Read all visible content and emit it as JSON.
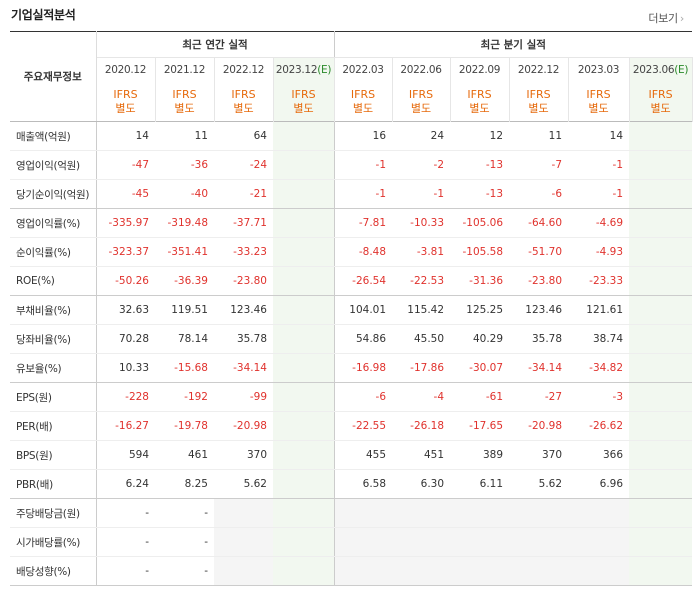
{
  "header": {
    "title": "기업실적분석",
    "more_label": "더보기",
    "more_chevron": "›"
  },
  "table": {
    "row_header": "주요재무정보",
    "annual_group": "최근 연간 실적",
    "quarter_group": "최근 분기 실적",
    "annual_periods": [
      {
        "label": "2020.12",
        "est": false
      },
      {
        "label": "2021.12",
        "est": false
      },
      {
        "label": "2022.12",
        "est": false
      },
      {
        "label": "2023.12",
        "est": true
      }
    ],
    "quarter_periods": [
      {
        "label": "2022.03",
        "est": false
      },
      {
        "label": "2022.06",
        "est": false
      },
      {
        "label": "2022.09",
        "est": false
      },
      {
        "label": "2022.12",
        "est": false
      },
      {
        "label": "2023.03",
        "est": false
      },
      {
        "label": "2023.06",
        "est": true
      }
    ],
    "est_suffix": "(E)",
    "ifrs_line1": "IFRS",
    "ifrs_line2": "별도",
    "rows": [
      {
        "label": "매출액(억원)",
        "values": [
          "14",
          "11",
          "64",
          "",
          "16",
          "24",
          "12",
          "11",
          "14",
          ""
        ],
        "sep": false
      },
      {
        "label": "영업이익(억원)",
        "values": [
          "-47",
          "-36",
          "-24",
          "",
          "-1",
          "-2",
          "-13",
          "-7",
          "-1",
          ""
        ],
        "sep": false
      },
      {
        "label": "당기순이익(억원)",
        "values": [
          "-45",
          "-40",
          "-21",
          "",
          "-1",
          "-1",
          "-13",
          "-6",
          "-1",
          ""
        ],
        "sep": true
      },
      {
        "label": "영업이익률(%)",
        "values": [
          "-335.97",
          "-319.48",
          "-37.71",
          "",
          "-7.81",
          "-10.33",
          "-105.06",
          "-64.60",
          "-4.69",
          ""
        ],
        "sep": false
      },
      {
        "label": "순이익률(%)",
        "values": [
          "-323.37",
          "-351.41",
          "-33.23",
          "",
          "-8.48",
          "-3.81",
          "-105.58",
          "-51.70",
          "-4.93",
          ""
        ],
        "sep": false
      },
      {
        "label": "ROE(%)",
        "values": [
          "-50.26",
          "-36.39",
          "-23.80",
          "",
          "-26.54",
          "-22.53",
          "-31.36",
          "-23.80",
          "-23.33",
          ""
        ],
        "sep": true
      },
      {
        "label": "부채비율(%)",
        "values": [
          "32.63",
          "119.51",
          "123.46",
          "",
          "104.01",
          "115.42",
          "125.25",
          "123.46",
          "121.61",
          ""
        ],
        "sep": false
      },
      {
        "label": "당좌비율(%)",
        "values": [
          "70.28",
          "78.14",
          "35.78",
          "",
          "54.86",
          "45.50",
          "40.29",
          "35.78",
          "38.74",
          ""
        ],
        "sep": false
      },
      {
        "label": "유보율(%)",
        "values": [
          "10.33",
          "-15.68",
          "-34.14",
          "",
          "-16.98",
          "-17.86",
          "-30.07",
          "-34.14",
          "-34.82",
          ""
        ],
        "sep": true
      },
      {
        "label": "EPS(원)",
        "values": [
          "-228",
          "-192",
          "-99",
          "",
          "-6",
          "-4",
          "-61",
          "-27",
          "-3",
          ""
        ],
        "sep": false
      },
      {
        "label": "PER(배)",
        "values": [
          "-16.27",
          "-19.78",
          "-20.98",
          "",
          "-22.55",
          "-26.18",
          "-17.65",
          "-20.98",
          "-26.62",
          ""
        ],
        "sep": false
      },
      {
        "label": "BPS(원)",
        "values": [
          "594",
          "461",
          "370",
          "",
          "455",
          "451",
          "389",
          "370",
          "366",
          ""
        ],
        "sep": false
      },
      {
        "label": "PBR(배)",
        "values": [
          "6.24",
          "8.25",
          "5.62",
          "",
          "6.58",
          "6.30",
          "6.11",
          "5.62",
          "6.96",
          ""
        ],
        "sep": true
      },
      {
        "label": "주당배당금(원)",
        "values": [
          "-",
          "-",
          "",
          "",
          "",
          "",
          "",
          "",
          "",
          ""
        ],
        "sep": false,
        "blank_rest": true
      },
      {
        "label": "시가배당률(%)",
        "values": [
          "-",
          "-",
          "",
          "",
          "",
          "",
          "",
          "",
          "",
          ""
        ],
        "sep": false,
        "blank_rest": true
      },
      {
        "label": "배당성향(%)",
        "values": [
          "-",
          "-",
          "",
          "",
          "",
          "",
          "",
          "",
          "",
          ""
        ],
        "sep": true,
        "blank_rest": true
      }
    ]
  }
}
